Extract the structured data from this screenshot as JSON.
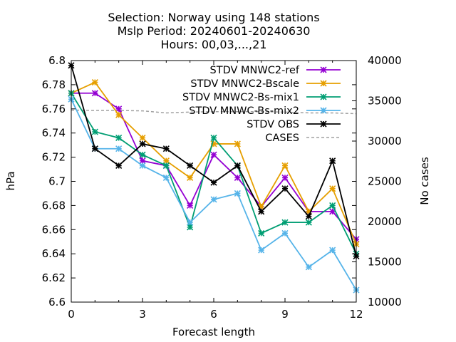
{
  "chart_data": {
    "type": "line",
    "title_lines": [
      "Selection: Norway using   148 stations",
      "Mslp   Period: 20240601-20240630",
      "Hours: 00,03,...,21"
    ],
    "xlabel": "Forecast length",
    "ylabel": "hPa",
    "y2label": "No cases",
    "xlim": [
      0,
      12
    ],
    "ylim": [
      6.6,
      6.8
    ],
    "y2lim": [
      10000,
      40000
    ],
    "xticks": [
      0,
      3,
      6,
      9,
      12
    ],
    "yticks": [
      "6.6",
      "6.62",
      "6.64",
      "6.66",
      "6.68",
      "6.7",
      "6.72",
      "6.74",
      "6.76",
      "6.78",
      "6.8"
    ],
    "y2ticks": [
      "10000",
      "15000",
      "20000",
      "25000",
      "30000",
      "35000",
      "40000"
    ],
    "legend_position": "top-right",
    "x": [
      0,
      1,
      2,
      3,
      4,
      5,
      6,
      7,
      8,
      9,
      10,
      11,
      12
    ],
    "series": [
      {
        "name": "STDV MNWC2-ref",
        "color": "#9400d3",
        "marker": "cross-x",
        "values": [
          6.773,
          6.773,
          6.76,
          6.717,
          6.713,
          6.68,
          6.722,
          6.703,
          6.679,
          6.703,
          6.675,
          6.675,
          6.652
        ]
      },
      {
        "name": "STDV MNWC2-Bscale",
        "color": "#e69f00",
        "marker": "cross-x",
        "values": [
          6.773,
          6.782,
          6.755,
          6.736,
          6.717,
          6.703,
          6.731,
          6.731,
          6.679,
          6.713,
          6.675,
          6.694,
          6.648
        ]
      },
      {
        "name": "STDV MNWC2-Bs-mix1",
        "color": "#009e73",
        "marker": "cross-x",
        "values": [
          6.773,
          6.741,
          6.736,
          6.722,
          6.713,
          6.662,
          6.736,
          6.713,
          6.657,
          6.666,
          6.666,
          6.68,
          6.64
        ]
      },
      {
        "name": "STDV MNWC-Bs-mix2",
        "color": "#56b4e9",
        "marker": "cross-x",
        "values": [
          6.768,
          6.727,
          6.727,
          6.713,
          6.703,
          6.666,
          6.685,
          6.69,
          6.643,
          6.657,
          6.629,
          6.643,
          6.61
        ]
      },
      {
        "name": "STDV OBS",
        "color": "#000000",
        "marker": "cross-x",
        "values": [
          6.796,
          6.727,
          6.713,
          6.731,
          6.727,
          6.713,
          6.699,
          6.713,
          6.675,
          6.694,
          6.671,
          6.717,
          6.638
        ]
      },
      {
        "name": "CASES",
        "color": "#a0a0a0",
        "dashed": true,
        "axis": "y2",
        "values": [
          33850,
          33800,
          33800,
          33750,
          33500,
          33600,
          33650,
          33650,
          33650,
          33600,
          33500,
          33500,
          33400
        ]
      }
    ]
  }
}
